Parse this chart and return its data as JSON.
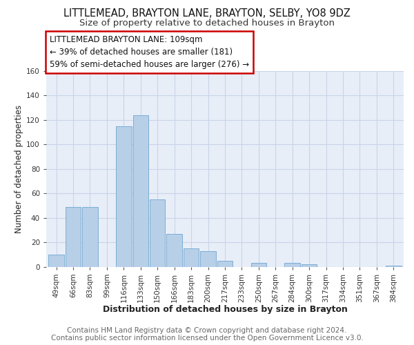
{
  "title": "LITTLEMEAD, BRAYTON LANE, BRAYTON, SELBY, YO8 9DZ",
  "subtitle": "Size of property relative to detached houses in Brayton",
  "xlabel": "Distribution of detached houses by size in Brayton",
  "ylabel": "Number of detached properties",
  "bar_labels": [
    "49sqm",
    "66sqm",
    "83sqm",
    "99sqm",
    "116sqm",
    "133sqm",
    "150sqm",
    "166sqm",
    "183sqm",
    "200sqm",
    "217sqm",
    "233sqm",
    "250sqm",
    "267sqm",
    "284sqm",
    "300sqm",
    "317sqm",
    "334sqm",
    "351sqm",
    "367sqm",
    "384sqm"
  ],
  "bar_values": [
    10,
    49,
    49,
    0,
    115,
    124,
    55,
    27,
    15,
    13,
    5,
    0,
    3,
    0,
    3,
    2,
    0,
    0,
    0,
    0,
    1
  ],
  "bar_color": "#b8cfe8",
  "bar_edge_color": "#7aadd4",
  "ylim": [
    0,
    160
  ],
  "yticks": [
    0,
    20,
    40,
    60,
    80,
    100,
    120,
    140,
    160
  ],
  "annotation_box_text": "LITTLEMEAD BRAYTON LANE: 109sqm\n← 39% of detached houses are smaller (181)\n59% of semi-detached houses are larger (276) →",
  "annotation_box_color": "#ffffff",
  "annotation_box_edge_color": "#cc0000",
  "footer_line1": "Contains HM Land Registry data © Crown copyright and database right 2024.",
  "footer_line2": "Contains public sector information licensed under the Open Government Licence v3.0.",
  "bg_color": "#ffffff",
  "plot_bg_color": "#e8eef8",
  "grid_color": "#c8d4e8",
  "title_fontsize": 10.5,
  "subtitle_fontsize": 9.5,
  "xlabel_fontsize": 9,
  "ylabel_fontsize": 8.5,
  "tick_fontsize": 7.5,
  "annotation_fontsize": 8.5,
  "footer_fontsize": 7.5
}
